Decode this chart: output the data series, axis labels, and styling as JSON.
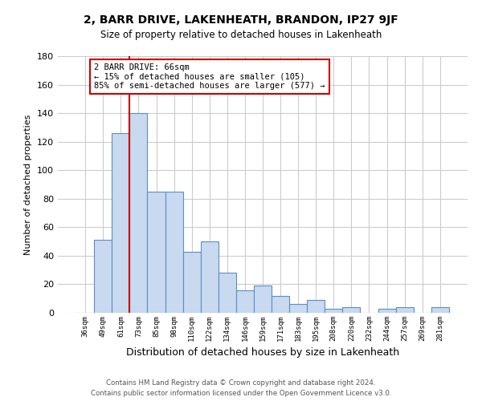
{
  "title": "2, BARR DRIVE, LAKENHEATH, BRANDON, IP27 9JF",
  "subtitle": "Size of property relative to detached houses in Lakenheath",
  "xlabel": "Distribution of detached houses by size in Lakenheath",
  "ylabel": "Number of detached properties",
  "bins": [
    "36sqm",
    "49sqm",
    "61sqm",
    "73sqm",
    "85sqm",
    "98sqm",
    "110sqm",
    "122sqm",
    "134sqm",
    "146sqm",
    "159sqm",
    "171sqm",
    "183sqm",
    "195sqm",
    "208sqm",
    "220sqm",
    "232sqm",
    "244sqm",
    "257sqm",
    "269sqm",
    "281sqm"
  ],
  "values": [
    0,
    51,
    126,
    140,
    85,
    85,
    43,
    50,
    28,
    16,
    19,
    12,
    6,
    9,
    3,
    4,
    0,
    3,
    4,
    0,
    4
  ],
  "bar_color": "#c8d9f0",
  "bar_edge_color": "#5b8ec4",
  "vline_color": "#cc0000",
  "vline_x_index": 2.5,
  "annotation_text": "2 BARR DRIVE: 66sqm\n← 15% of detached houses are smaller (105)\n85% of semi-detached houses are larger (577) →",
  "annotation_box_color": "#cc0000",
  "ylim": [
    0,
    180
  ],
  "yticks": [
    0,
    20,
    40,
    60,
    80,
    100,
    120,
    140,
    160,
    180
  ],
  "background_color": "#ffffff",
  "grid_color": "#cccccc",
  "footer_line1": "Contains HM Land Registry data © Crown copyright and database right 2024.",
  "footer_line2": "Contains public sector information licensed under the Open Government Licence v3.0."
}
